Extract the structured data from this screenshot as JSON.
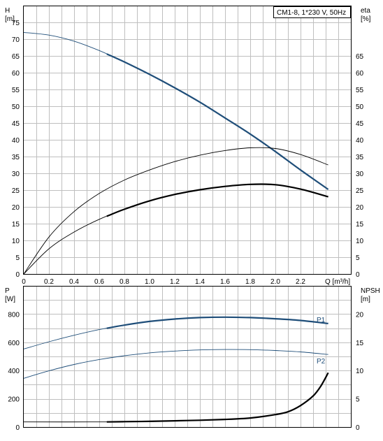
{
  "chart_data": [
    {
      "type": "line",
      "title": "CM1-8, 1*230 V, 50Hz",
      "xlabel": "Q [m³/h]",
      "ylabel": "H\n[m]",
      "y2label": "eta\n[%]",
      "xlim": [
        0,
        2.6
      ],
      "ylim": [
        0,
        80
      ],
      "y2lim": [
        0,
        80
      ],
      "x_ticks": [
        "0",
        "0.2",
        "0.4",
        "0.6",
        "0.8",
        "1.0",
        "1.2",
        "1.4",
        "1.6",
        "1.8",
        "2.0",
        "2.2"
      ],
      "y_ticks": [
        "0",
        "5",
        "10",
        "15",
        "20",
        "25",
        "30",
        "35",
        "40",
        "45",
        "50",
        "55",
        "60",
        "65",
        "70",
        "75"
      ],
      "y2_ticks": [
        "0",
        "5",
        "10",
        "15",
        "20",
        "25",
        "30",
        "35",
        "40",
        "45",
        "50",
        "55",
        "60",
        "65"
      ],
      "grid": true,
      "series": [
        {
          "axis": "y",
          "color": "#1f4e79",
          "x": [
            0,
            0.2,
            0.4,
            0.6,
            0.8,
            1.0,
            1.2,
            1.4,
            1.6,
            1.8,
            2.0,
            2.2,
            2.42
          ],
          "y": [
            72,
            71.2,
            69.4,
            66.6,
            63.2,
            59.5,
            55.5,
            51.2,
            46.5,
            41.7,
            36.5,
            31.0,
            25.2
          ],
          "bold_from": 0.66
        },
        {
          "axis": "y2",
          "color": "#000000",
          "x": [
            0,
            0.2,
            0.4,
            0.6,
            0.8,
            1.0,
            1.2,
            1.4,
            1.6,
            1.8,
            2.0,
            2.2,
            2.42
          ],
          "y": [
            0,
            11,
            18.6,
            24,
            28,
            31,
            33.5,
            35.4,
            36.8,
            37.6,
            37.4,
            35.6,
            32.5
          ],
          "bold_from": null
        },
        {
          "axis": "y2",
          "color": "#000000",
          "x": [
            0,
            0.2,
            0.4,
            0.6,
            0.8,
            1.0,
            1.2,
            1.4,
            1.6,
            1.8,
            2.0,
            2.2,
            2.42
          ],
          "y": [
            0,
            7.5,
            12.5,
            16.3,
            19.3,
            21.8,
            23.7,
            25.1,
            26.1,
            26.7,
            26.6,
            25.3,
            23
          ],
          "bold_from": 0.66
        }
      ]
    },
    {
      "type": "line",
      "xlabel": "",
      "ylabel": "P\n[W]",
      "y2label": "NPSH\n[m]",
      "xlim": [
        0,
        2.6
      ],
      "ylim": [
        0,
        1000
      ],
      "y2lim": [
        0,
        25
      ],
      "y_ticks": [
        "0",
        "200",
        "400",
        "600",
        "800"
      ],
      "y2_ticks": [
        "0",
        "5",
        "10",
        "15",
        "20"
      ],
      "grid": true,
      "series": [
        {
          "name": "P1",
          "axis": "y",
          "color": "#1f4e79",
          "x": [
            0,
            0.2,
            0.4,
            0.6,
            0.8,
            1.0,
            1.2,
            1.4,
            1.6,
            1.8,
            2.0,
            2.2,
            2.42
          ],
          "y": [
            553,
            604,
            650,
            690,
            722,
            748,
            765,
            775,
            778,
            775,
            767,
            755,
            733
          ],
          "bold_from": 0.66
        },
        {
          "name": "P2",
          "axis": "y",
          "color": "#1f4e79",
          "x": [
            0,
            0.2,
            0.4,
            0.6,
            0.8,
            1.0,
            1.2,
            1.4,
            1.6,
            1.8,
            2.0,
            2.2,
            2.42
          ],
          "y": [
            345,
            398,
            443,
            478,
            505,
            525,
            538,
            546,
            549,
            548,
            542,
            532,
            514
          ],
          "bold_from": null
        },
        {
          "axis": "y2",
          "color": "#000000",
          "x": [
            0,
            0.66,
            0.8,
            1.0,
            1.2,
            1.4,
            1.6,
            1.8,
            2.0,
            2.1,
            2.2,
            2.3,
            2.36,
            2.42
          ],
          "y": [
            0.9,
            0.9,
            0.95,
            1.0,
            1.1,
            1.2,
            1.35,
            1.6,
            2.2,
            2.7,
            3.8,
            5.5,
            7.2,
            9.6
          ],
          "bold_from": 0.66
        }
      ],
      "labels": {
        "p1": "P1",
        "p2": "P2"
      }
    }
  ]
}
